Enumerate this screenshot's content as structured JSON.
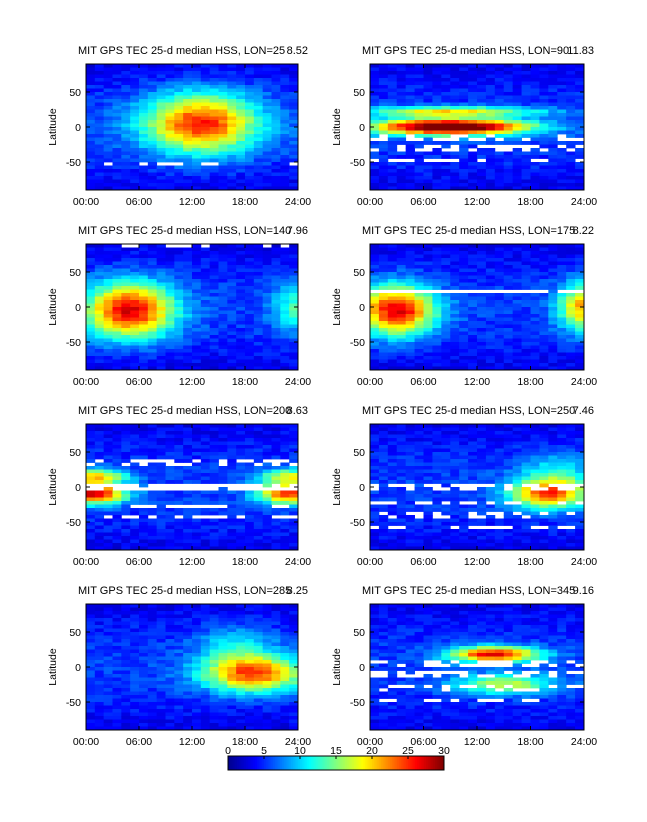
{
  "figure": {
    "colormap": "jet",
    "colormap_stops": [
      "#00008f",
      "#0000ff",
      "#0080ff",
      "#00ffff",
      "#80ff80",
      "#ffff00",
      "#ff8000",
      "#ff0000",
      "#800000"
    ]
  },
  "chart_data": [
    {
      "type": "heatmap",
      "title": "MIT GPS TEC 25-d median HSS, LON=25",
      "max_value": "8.52",
      "xlabel": "",
      "ylabel": "Latitude",
      "x_ticks": [
        "00:00",
        "06:00",
        "12:00",
        "18:00",
        "24:00"
      ],
      "y_ticks": [
        "50",
        "0",
        "-50"
      ],
      "xlim": [
        0,
        24
      ],
      "ylim": [
        -90,
        90
      ],
      "pattern": {
        "blobs": [
          {
            "t": 13,
            "lat": 5,
            "st": 4.5,
            "sl": 30,
            "amp": 20
          }
        ],
        "gaps": [
          [
            -52,
            0.4
          ]
        ]
      }
    },
    {
      "type": "heatmap",
      "title": "MIT GPS TEC 25-d median HSS, LON=90",
      "max_value": "11.83",
      "xlabel": "",
      "ylabel": "Latitude",
      "x_ticks": [
        "00:00",
        "06:00",
        "12:00",
        "18:00",
        "24:00"
      ],
      "y_ticks": [
        "50",
        "0",
        "-50"
      ],
      "xlim": [
        0,
        24
      ],
      "ylim": [
        -90,
        90
      ],
      "pattern": {
        "blobs": [
          {
            "t": 9,
            "lat": 0,
            "st": 6,
            "sl": 8,
            "amp": 30
          },
          {
            "t": 9,
            "lat": 22,
            "st": 7,
            "sl": 5,
            "amp": 14
          }
        ],
        "gaps": [
          [
            -15,
            0.5
          ],
          [
            -30,
            0.45
          ],
          [
            -48,
            0.4
          ]
        ]
      }
    },
    {
      "type": "heatmap",
      "title": "MIT GPS TEC 25-d median HSS, LON=140",
      "max_value": "7.96",
      "xlabel": "",
      "ylabel": "Latitude",
      "x_ticks": [
        "00:00",
        "06:00",
        "12:00",
        "18:00",
        "24:00"
      ],
      "y_ticks": [
        "50",
        "0",
        "-50"
      ],
      "xlim": [
        0,
        24
      ],
      "ylim": [
        -90,
        90
      ],
      "pattern": {
        "blobs": [
          {
            "t": 5,
            "lat": -5,
            "st": 3.5,
            "sl": 28,
            "amp": 22
          },
          {
            "t": 24,
            "lat": 0,
            "st": 2,
            "sl": 25,
            "amp": 8
          }
        ],
        "gaps": [
          [
            88,
            0.3
          ]
        ]
      }
    },
    {
      "type": "heatmap",
      "title": "MIT GPS TEC 25-d median HSS, LON=175",
      "max_value": "8.22",
      "xlabel": "",
      "ylabel": "Latitude",
      "x_ticks": [
        "00:00",
        "06:00",
        "12:00",
        "18:00",
        "24:00"
      ],
      "y_ticks": [
        "50",
        "0",
        "-50"
      ],
      "xlim": [
        0,
        24
      ],
      "ylim": [
        -90,
        90
      ],
      "pattern": {
        "blobs": [
          {
            "t": 3,
            "lat": -5,
            "st": 3,
            "sl": 25,
            "amp": 22
          },
          {
            "t": 24,
            "lat": 0,
            "st": 2,
            "sl": 25,
            "amp": 16
          }
        ],
        "gaps": [
          [
            23,
            0.9
          ]
        ]
      }
    },
    {
      "type": "heatmap",
      "title": "MIT GPS TEC 25-d median HSS, LON=200",
      "max_value": "8.63",
      "xlabel": "",
      "ylabel": "Latitude",
      "x_ticks": [
        "00:00",
        "06:00",
        "12:00",
        "18:00",
        "24:00"
      ],
      "y_ticks": [
        "50",
        "0",
        "-50"
      ],
      "xlim": [
        0,
        24
      ],
      "ylim": [
        -90,
        90
      ],
      "pattern": {
        "blobs": [
          {
            "t": 1,
            "lat": -10,
            "st": 2.5,
            "sl": 10,
            "amp": 22
          },
          {
            "t": 23,
            "lat": -10,
            "st": 2.5,
            "sl": 10,
            "amp": 20
          },
          {
            "t": 1,
            "lat": 15,
            "st": 2.5,
            "sl": 8,
            "amp": 14
          },
          {
            "t": 23,
            "lat": 15,
            "st": 2.5,
            "sl": 8,
            "amp": 12
          }
        ],
        "gaps": [
          [
            35,
            0.6
          ],
          [
            0,
            0.85
          ],
          [
            -28,
            0.6
          ],
          [
            -42,
            0.45
          ]
        ]
      }
    },
    {
      "type": "heatmap",
      "title": "MIT GPS TEC 25-d median HSS, LON=250",
      "max_value": "7.46",
      "xlabel": "",
      "ylabel": "Latitude",
      "x_ticks": [
        "00:00",
        "06:00",
        "12:00",
        "18:00",
        "24:00"
      ],
      "y_ticks": [
        "50",
        "0",
        "-50"
      ],
      "xlim": [
        0,
        24
      ],
      "ylim": [
        -90,
        90
      ],
      "pattern": {
        "blobs": [
          {
            "t": 20,
            "lat": -10,
            "st": 3,
            "sl": 15,
            "amp": 18
          },
          {
            "t": 21,
            "lat": 20,
            "st": 3,
            "sl": 20,
            "amp": 6
          }
        ],
        "gaps": [
          [
            0,
            0.6
          ],
          [
            -22,
            0.5
          ],
          [
            -40,
            0.45
          ],
          [
            -58,
            0.5
          ]
        ]
      }
    },
    {
      "type": "heatmap",
      "title": "MIT GPS TEC 25-d median HSS, LON=285",
      "max_value": "8.25",
      "xlabel": "",
      "ylabel": "Latitude",
      "x_ticks": [
        "00:00",
        "06:00",
        "12:00",
        "18:00",
        "24:00"
      ],
      "y_ticks": [
        "50",
        "0",
        "-50"
      ],
      "xlim": [
        0,
        24
      ],
      "ylim": [
        -90,
        90
      ],
      "pattern": {
        "blobs": [
          {
            "t": 19,
            "lat": -10,
            "st": 4,
            "sl": 18,
            "amp": 19
          },
          {
            "t": 17,
            "lat": 30,
            "st": 3,
            "sl": 20,
            "amp": 6
          }
        ],
        "gaps": []
      }
    },
    {
      "type": "heatmap",
      "title": "MIT GPS TEC 25-d median HSS, LON=345",
      "max_value": "9.16",
      "xlabel": "",
      "ylabel": "Latitude",
      "x_ticks": [
        "00:00",
        "06:00",
        "12:00",
        "18:00",
        "24:00"
      ],
      "y_ticks": [
        "50",
        "0",
        "-50"
      ],
      "xlim": [
        0,
        24
      ],
      "ylim": [
        -90,
        90
      ],
      "pattern": {
        "blobs": [
          {
            "t": 14,
            "lat": 18,
            "st": 3.5,
            "sl": 8,
            "amp": 22
          },
          {
            "t": 15,
            "lat": -25,
            "st": 4,
            "sl": 10,
            "amp": 12
          }
        ],
        "gaps": [
          [
            5,
            0.45
          ],
          [
            -10,
            0.5
          ],
          [
            -30,
            0.4
          ],
          [
            -48,
            0.45
          ]
        ]
      }
    }
  ],
  "colorbar": {
    "ticks": [
      "0",
      "5",
      "10",
      "15",
      "20",
      "25",
      "30"
    ],
    "vmin": 0,
    "vmax": 30
  }
}
